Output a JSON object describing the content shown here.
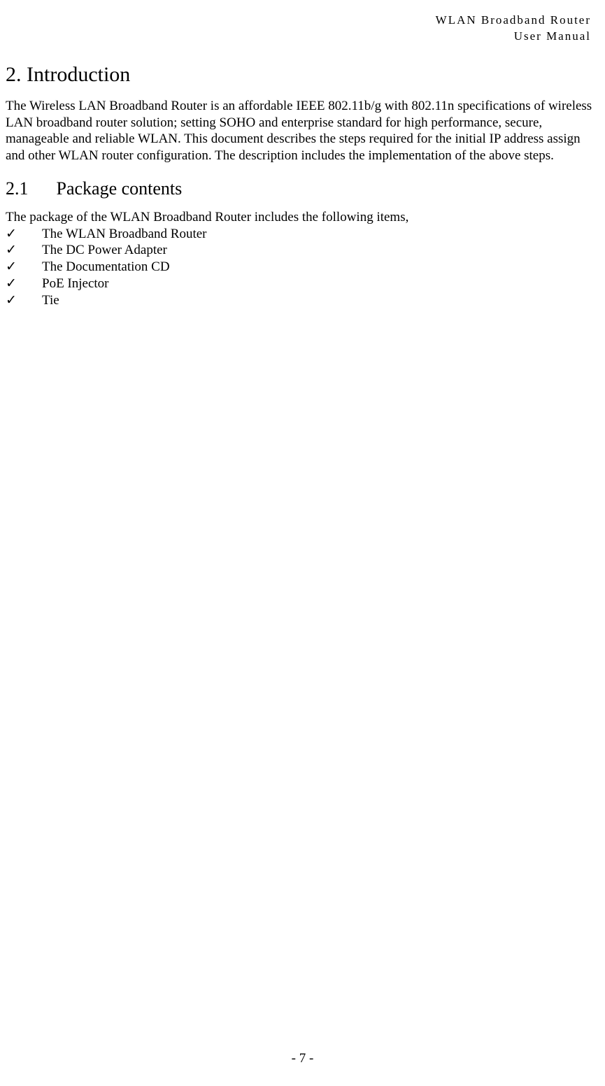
{
  "header": {
    "line1": "WLAN  Broadband  Router",
    "line2": "User  Manual"
  },
  "section": {
    "number": "2.",
    "title": "Introduction"
  },
  "intro_paragraph": "The Wireless LAN Broadband Router is an affordable IEEE 802.11b/g with 802.11n specifications of wireless LAN broadband router solution; setting SOHO and enterprise standard for high performance, secure, manageable and reliable WLAN. This document describes the steps required for the initial IP address assign and other WLAN router configuration. The description includes the implementation of the above steps.",
  "subsection": {
    "number": "2.1",
    "title": "Package contents"
  },
  "package_intro": "The package of the WLAN Broadband Router includes the following items,",
  "check_glyph": "✓",
  "package_items": [
    "The WLAN Broadband Router",
    "The DC Power Adapter",
    "The Documentation CD",
    "PoE Injector",
    "Tie"
  ],
  "page_number": "- 7 -",
  "colors": {
    "background": "#ffffff",
    "text": "#000000"
  },
  "typography": {
    "body_font": "Times New Roman",
    "body_size_pt": 14,
    "heading_size_pt": 22,
    "subheading_size_pt": 19
  }
}
